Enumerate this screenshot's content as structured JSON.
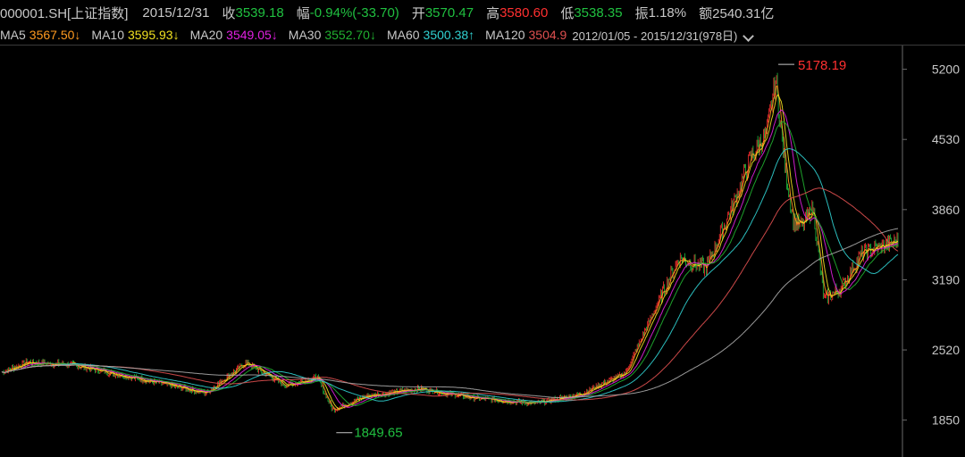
{
  "header": {
    "symbol": "000001.SH[上证指数]",
    "date": "2015/12/31",
    "close_label": "收",
    "close": "3539.18",
    "change_label": "幅",
    "change": "-0.94%(-33.70)",
    "open_label": "开",
    "open": "3570.47",
    "high_label": "高",
    "high": "3580.60",
    "low_label": "低",
    "low": "3538.35",
    "amp_label": "振",
    "amp": "1.18%",
    "amount_label": "额",
    "amount": "2540.31亿"
  },
  "ma_bar": [
    {
      "label": "MA5",
      "value": "3567.50↓",
      "color": "#ff9a1f"
    },
    {
      "label": "MA10",
      "value": "3595.93↓",
      "color": "#f0e020"
    },
    {
      "label": "MA20",
      "value": "3549.05↓",
      "color": "#e020e0"
    },
    {
      "label": "MA30",
      "value": "3552.70↓",
      "color": "#20b030"
    },
    {
      "label": "MA60",
      "value": "3500.38↑",
      "color": "#30d0d0"
    },
    {
      "label": "MA120",
      "value": "3504.9",
      "color": "#e05050"
    }
  ],
  "range_text": "2012/01/05 - 2015/12/31(978日)",
  "range_icon": "chevron-down-icon",
  "chart_data": {
    "type": "candlestick",
    "ylim": [
      1600,
      5350
    ],
    "y_ticks": [
      "5200",
      "4530",
      "3860",
      "3190",
      "2520",
      "1850"
    ],
    "max_label": "5178.19",
    "min_label": "1849.65",
    "up_color": "#ff3030",
    "down_color": "#20c040",
    "series": [
      {
        "name": "MA5",
        "color": "#ff9a1f"
      },
      {
        "name": "MA10",
        "color": "#f0e020"
      },
      {
        "name": "MA20",
        "color": "#e020e0"
      },
      {
        "name": "MA30",
        "color": "#20b030"
      },
      {
        "name": "MA60",
        "color": "#30d0d0"
      },
      {
        "name": "MA120",
        "color": "#e05050"
      },
      {
        "name": "MA250",
        "color": "#aaaaaa"
      }
    ]
  }
}
